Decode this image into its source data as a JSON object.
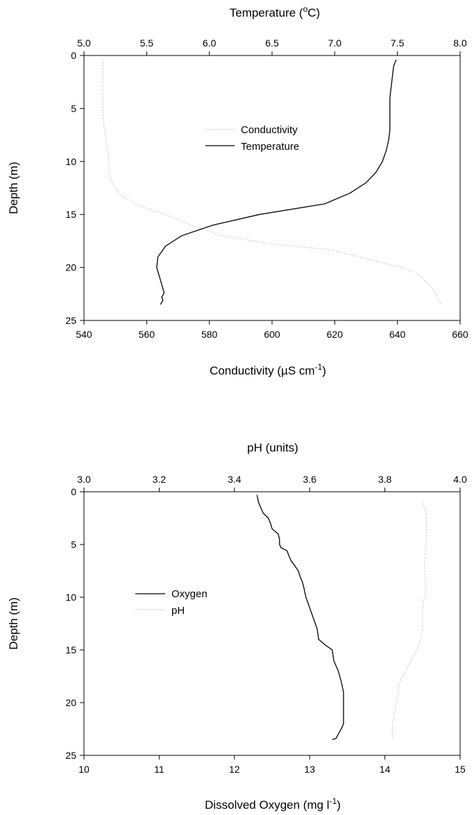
{
  "chart_data": [
    {
      "type": "line",
      "top_axis": {
        "label": "Temperature (",
        "label_sup": "o",
        "label_tail": "C)",
        "range": [
          5.0,
          8.0
        ],
        "ticks": [
          "5.0",
          "5.5",
          "6.0",
          "6.5",
          "7.0",
          "7.5",
          "8.0"
        ]
      },
      "bottom_axis": {
        "label": "Conductivity (",
        "label_greek": "µ",
        "label_mid": "S cm",
        "label_sup": "-1",
        "label_tail": ")",
        "range": [
          540,
          660
        ],
        "ticks": [
          "540",
          "560",
          "580",
          "600",
          "620",
          "640",
          "660"
        ]
      },
      "y_axis": {
        "label": "Depth (m)",
        "range": [
          0,
          25
        ],
        "inverted": true,
        "ticks": [
          "0",
          "5",
          "10",
          "15",
          "20",
          "25"
        ]
      },
      "legend_position": "center",
      "series": [
        {
          "name": "Conductivity",
          "axis": "bottom",
          "style": "dotted",
          "color": "#bfbfbf",
          "points": [
            [
              546,
              0.4
            ],
            [
              546,
              2
            ],
            [
              546,
              5
            ],
            [
              546.5,
              7
            ],
            [
              547,
              8
            ],
            [
              547.5,
              9
            ],
            [
              548,
              10
            ],
            [
              548,
              11
            ],
            [
              549,
              12
            ],
            [
              551,
              13
            ],
            [
              556,
              14
            ],
            [
              566,
              15
            ],
            [
              574,
              16
            ],
            [
              584,
              17
            ],
            [
              600,
              17.8
            ],
            [
              618,
              18.3
            ],
            [
              632,
              19.3
            ],
            [
              641,
              20
            ],
            [
              646,
              20.5
            ],
            [
              648,
              21
            ],
            [
              650,
              21.6
            ],
            [
              652,
              22.3
            ],
            [
              653,
              23
            ],
            [
              654,
              23.5
            ]
          ]
        },
        {
          "name": "Temperature",
          "axis": "top",
          "style": "solid",
          "color": "#000000",
          "points": [
            [
              7.49,
              0.4
            ],
            [
              7.47,
              1
            ],
            [
              7.46,
              2
            ],
            [
              7.45,
              3
            ],
            [
              7.44,
              4
            ],
            [
              7.44,
              5
            ],
            [
              7.44,
              6
            ],
            [
              7.44,
              7
            ],
            [
              7.43,
              8
            ],
            [
              7.41,
              9
            ],
            [
              7.38,
              10
            ],
            [
              7.33,
              11
            ],
            [
              7.25,
              12
            ],
            [
              7.12,
              13
            ],
            [
              6.92,
              14
            ],
            [
              6.4,
              15
            ],
            [
              6.03,
              16
            ],
            [
              5.78,
              17
            ],
            [
              5.65,
              18
            ],
            [
              5.59,
              19
            ],
            [
              5.58,
              20
            ],
            [
              5.6,
              20.8
            ],
            [
              5.62,
              21.6
            ],
            [
              5.64,
              22.4
            ],
            [
              5.62,
              22.8
            ],
            [
              5.63,
              23.1
            ],
            [
              5.61,
              23.5
            ]
          ]
        }
      ]
    },
    {
      "type": "line",
      "top_axis": {
        "label": "pH (units)",
        "range": [
          3.0,
          4.0
        ],
        "ticks": [
          "3.0",
          "3.2",
          "3.4",
          "3.6",
          "3.8",
          "4.0"
        ]
      },
      "bottom_axis": {
        "label": "Dissolved Oxygen (mg l",
        "label_sup": "-1",
        "label_tail": ")",
        "range": [
          10,
          15
        ],
        "ticks": [
          "10",
          "11",
          "12",
          "13",
          "14",
          "15"
        ]
      },
      "y_axis": {
        "label": "Depth (m)",
        "range": [
          0,
          25
        ],
        "inverted": true,
        "ticks": [
          "0",
          "5",
          "10",
          "15",
          "20",
          "25"
        ]
      },
      "legend_position": "center-left",
      "series": [
        {
          "name": "Oxygen",
          "axis": "bottom",
          "style": "solid",
          "color": "#000000",
          "points": [
            [
              12.3,
              0.3
            ],
            [
              12.32,
              1
            ],
            [
              12.35,
              1.5
            ],
            [
              12.38,
              2
            ],
            [
              12.45,
              2.5
            ],
            [
              12.48,
              3
            ],
            [
              12.5,
              3.5
            ],
            [
              12.58,
              4
            ],
            [
              12.6,
              4.5
            ],
            [
              12.6,
              5
            ],
            [
              12.62,
              5.3
            ],
            [
              12.7,
              5.6
            ],
            [
              12.72,
              6
            ],
            [
              12.75,
              6.5
            ],
            [
              12.8,
              7
            ],
            [
              12.85,
              7.5
            ],
            [
              12.87,
              8
            ],
            [
              12.9,
              8.5
            ],
            [
              12.92,
              9
            ],
            [
              12.95,
              10
            ],
            [
              13.0,
              11
            ],
            [
              13.05,
              12
            ],
            [
              13.1,
              13
            ],
            [
              13.12,
              14
            ],
            [
              13.2,
              14.5
            ],
            [
              13.3,
              15
            ],
            [
              13.32,
              16
            ],
            [
              13.38,
              17
            ],
            [
              13.42,
              18
            ],
            [
              13.45,
              19
            ],
            [
              13.45,
              20
            ],
            [
              13.45,
              21
            ],
            [
              13.45,
              22
            ],
            [
              13.42,
              22.5
            ],
            [
              13.38,
              23
            ],
            [
              13.35,
              23.4
            ],
            [
              13.3,
              23.5
            ]
          ]
        },
        {
          "name": "pH",
          "axis": "top",
          "style": "dotted",
          "color": "#bfbfbf",
          "points": [
            [
              3.9,
              1
            ],
            [
              3.91,
              2
            ],
            [
              3.91,
              3
            ],
            [
              3.91,
              5
            ],
            [
              3.905,
              7
            ],
            [
              3.91,
              9
            ],
            [
              3.9,
              11
            ],
            [
              3.9,
              13
            ],
            [
              3.895,
              14
            ],
            [
              3.885,
              15
            ],
            [
              3.87,
              16
            ],
            [
              3.855,
              17
            ],
            [
              3.84,
              18
            ],
            [
              3.835,
              19
            ],
            [
              3.83,
              20
            ],
            [
              3.825,
              21
            ],
            [
              3.82,
              22
            ],
            [
              3.82,
              23
            ],
            [
              3.82,
              23.5
            ]
          ]
        }
      ]
    }
  ]
}
